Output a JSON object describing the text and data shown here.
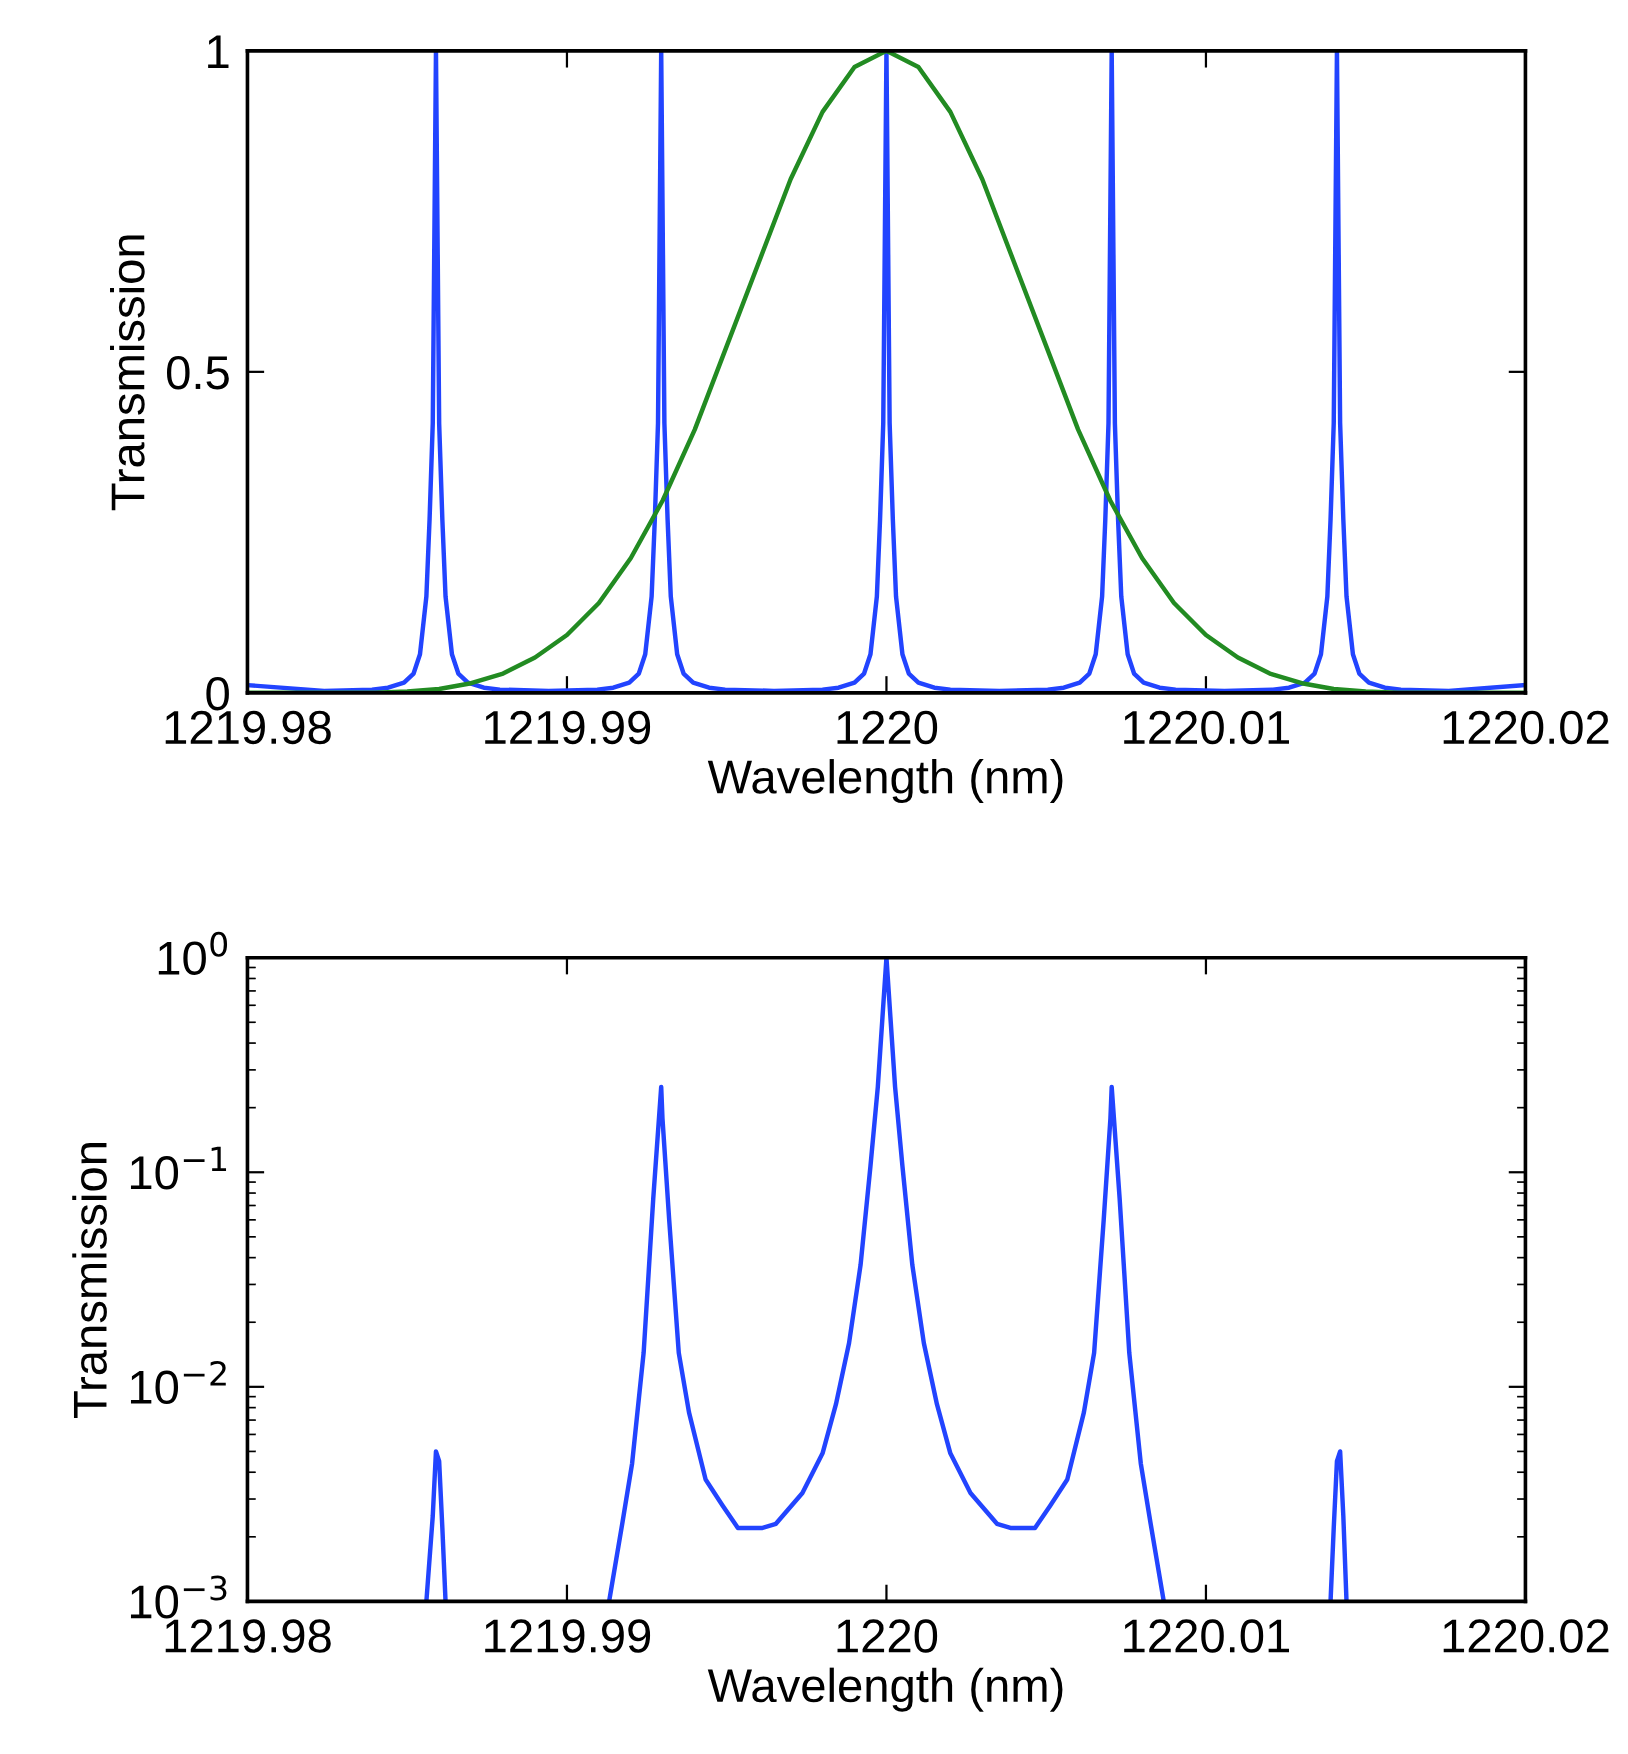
{
  "chart_data": [
    {
      "type": "line",
      "xlabel": "Wavelength (nm)",
      "ylabel": "Transmission",
      "xlim": [
        1219.98,
        1220.02
      ],
      "xticks": [
        1219.98,
        1219.99,
        1220,
        1220.01,
        1220.02
      ],
      "ylim": [
        0,
        1
      ],
      "yticks": [
        0,
        0.5,
        1
      ],
      "grid": false,
      "line_style": "solid",
      "marker": "none",
      "series": [
        {
          "color": "#2244ff",
          "x": [
            1219.98,
            1219.9824,
            1219.9839,
            1219.9844,
            1219.9849,
            1219.9852,
            1219.9854,
            1219.9856,
            1219.9857,
            1219.9858,
            1219.9859,
            1219.986,
            1219.9861,
            1219.9862,
            1219.9864,
            1219.9866,
            1219.9869,
            1219.9874,
            1219.9879,
            1219.98943,
            1219.99095,
            1219.99145,
            1219.99195,
            1219.99225,
            1219.99245,
            1219.99265,
            1219.99275,
            1219.99285,
            1219.99295,
            1219.99305,
            1219.99315,
            1219.99325,
            1219.99345,
            1219.99365,
            1219.99395,
            1219.99445,
            1219.99495,
            1219.99648,
            1219.998,
            1219.9985,
            1219.999,
            1219.9993,
            1219.9995,
            1219.9997,
            1219.9998,
            1219.9999,
            1220,
            1220.0001,
            1220.0002,
            1220.0003,
            1220.0005,
            1220.0007,
            1220.001,
            1220.0015,
            1220.002,
            1220.00353,
            1220.00505,
            1220.00555,
            1220.00605,
            1220.00635,
            1220.00655,
            1220.00675,
            1220.00685,
            1220.00695,
            1220.00705,
            1220.00715,
            1220.00725,
            1220.00735,
            1220.00755,
            1220.00775,
            1220.00805,
            1220.00855,
            1220.00905,
            1220.01058,
            1220.0121,
            1220.0126,
            1220.0131,
            1220.0134,
            1220.0136,
            1220.0138,
            1220.0139,
            1220.014,
            1220.0141,
            1220.0142,
            1220.0143,
            1220.0144,
            1220.0146,
            1220.0148,
            1220.0151,
            1220.0156,
            1220.0161,
            1220.0176,
            1220.02
          ],
          "values": [
            0.012,
            0.003,
            0.005,
            0.008,
            0.016,
            0.03,
            0.06,
            0.15,
            0.27,
            0.42,
            1,
            0.42,
            0.27,
            0.15,
            0.06,
            0.03,
            0.016,
            0.008,
            0.005,
            0.003,
            0.005,
            0.008,
            0.016,
            0.03,
            0.06,
            0.15,
            0.27,
            0.42,
            1,
            0.42,
            0.27,
            0.15,
            0.06,
            0.03,
            0.016,
            0.008,
            0.005,
            0.003,
            0.005,
            0.008,
            0.016,
            0.03,
            0.06,
            0.15,
            0.27,
            0.42,
            1,
            0.42,
            0.27,
            0.15,
            0.06,
            0.03,
            0.016,
            0.008,
            0.005,
            0.003,
            0.005,
            0.008,
            0.016,
            0.03,
            0.06,
            0.15,
            0.27,
            0.42,
            1,
            0.42,
            0.27,
            0.15,
            0.06,
            0.03,
            0.016,
            0.008,
            0.005,
            0.003,
            0.005,
            0.008,
            0.016,
            0.03,
            0.06,
            0.15,
            0.27,
            0.42,
            1,
            0.42,
            0.27,
            0.15,
            0.06,
            0.03,
            0.016,
            0.008,
            0.005,
            0.003,
            0.012
          ]
        },
        {
          "color": "#228b22",
          "x": [
            1219.98,
            1219.984,
            1219.985,
            1219.986,
            1219.987,
            1219.988,
            1219.989,
            1219.99,
            1219.991,
            1219.992,
            1219.993,
            1219.994,
            1219.995,
            1219.996,
            1219.997,
            1219.998,
            1219.999,
            1220,
            1220.001,
            1220.002,
            1220.003,
            1220.004,
            1220.005,
            1220.006,
            1220.007,
            1220.008,
            1220.009,
            1220.01,
            1220.011,
            1220.012,
            1220.013,
            1220.014,
            1220.015,
            1220.016,
            1220.02
          ],
          "values": [
            0,
            0,
            0.002,
            0.006,
            0.015,
            0.03,
            0.055,
            0.09,
            0.14,
            0.21,
            0.3,
            0.41,
            0.54,
            0.67,
            0.8,
            0.905,
            0.975,
            1,
            0.975,
            0.905,
            0.8,
            0.67,
            0.54,
            0.41,
            0.3,
            0.21,
            0.14,
            0.09,
            0.055,
            0.03,
            0.015,
            0.006,
            0.002,
            0,
            0
          ]
        }
      ]
    },
    {
      "type": "line",
      "xlabel": "Wavelength (nm)",
      "ylabel": "Transmission",
      "xlim": [
        1219.98,
        1220.02
      ],
      "xticks": [
        1219.98,
        1219.99,
        1220,
        1220.01,
        1220.02
      ],
      "log": "y",
      "ylim": [
        0.001,
        1
      ],
      "yticks": [
        {
          "value": 0.001,
          "label": "10$^{−3}$"
        },
        {
          "value": 0.01,
          "label": "10$^{−2}$"
        },
        {
          "value": 0.1,
          "label": "10$^{−1}$"
        },
        {
          "value": 1,
          "label": "10$^{0}$"
        }
      ],
      "grid": false,
      "line_style": "solid",
      "marker": "none",
      "series": [
        {
          "color": "#2244ff",
          "x": [
            1219.9856,
            1219.9858,
            1219.9859,
            1219.986,
            1219.9861,
            1219.9862,
            1219.988,
            1219.99132,
            1219.99173,
            1219.99204,
            1219.9924,
            1219.9927,
            1219.99295,
            1219.99299,
            1219.9932,
            1219.9935,
            1219.99382,
            1219.99434,
            1219.99487,
            1219.99535,
            1219.99612,
            1219.99654,
            1219.99737,
            1219.998,
            1219.99842,
            1219.99883,
            1219.99919,
            1219.9995,
            1219.99973,
            1220,
            1220.00027,
            1220.0005,
            1220.00081,
            1220.00117,
            1220.00158,
            1220.002,
            1220.00263,
            1220.00346,
            1220.00388,
            1220.00465,
            1220.00513,
            1220.00566,
            1220.00618,
            1220.0065,
            1220.0068,
            1220.00701,
            1220.00705,
            1220.0073,
            1220.0076,
            1220.00796,
            1220.00827,
            1220.00868,
            1220.011,
            1220.0139,
            1220.014,
            1220.0141,
            1220.0142,
            1220.0143,
            1220.0144
          ],
          "values": [
            0.001,
            0.0025,
            0.005,
            0.0045,
            0.0022,
            0.001,
            null,
            0.001,
            0.0023,
            0.0044,
            0.0144,
            0.075,
            0.25,
            0.178,
            0.06,
            0.0144,
            0.0076,
            0.0037,
            0.0028,
            0.0022,
            0.0022,
            0.0023,
            0.0032,
            0.0049,
            0.0083,
            0.016,
            0.037,
            0.107,
            0.25,
            1,
            0.25,
            0.107,
            0.037,
            0.016,
            0.0083,
            0.0049,
            0.0032,
            0.0023,
            0.0022,
            0.0022,
            0.0028,
            0.0037,
            0.0076,
            0.0144,
            0.06,
            0.178,
            0.25,
            0.075,
            0.0144,
            0.0044,
            0.0023,
            0.001,
            null,
            0.001,
            0.0022,
            0.0045,
            0.005,
            0.0025,
            0.001
          ]
        }
      ]
    }
  ]
}
